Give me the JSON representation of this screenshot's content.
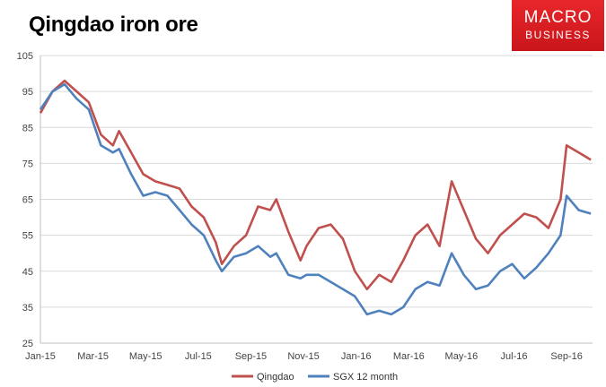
{
  "title": "Qingdao iron ore",
  "logo": {
    "line1": "MACRO",
    "line2": "BUSINESS"
  },
  "colors": {
    "qingdao": "#c0504d",
    "sgx": "#4f81bd",
    "grid": "#d9d9d9"
  },
  "chart_data": {
    "type": "line",
    "title": "Qingdao iron ore",
    "xlabel": "",
    "ylabel": "",
    "ylim": [
      25,
      105
    ],
    "yticks": [
      25,
      35,
      45,
      55,
      65,
      75,
      85,
      95,
      105
    ],
    "xlim": [
      "2015-01-01",
      "2016-10-01"
    ],
    "xtick_labels": [
      "Jan-15",
      "Mar-15",
      "May-15",
      "Jul-15",
      "Sep-15",
      "Nov-15",
      "Jan-16",
      "Mar-16",
      "May-16",
      "Jul-16",
      "Sep-16"
    ],
    "grid": "horizontal",
    "legend": "bottom",
    "series": [
      {
        "name": "Qingdao",
        "points": [
          [
            "2015-01-01",
            89
          ],
          [
            "2015-01-15",
            95
          ],
          [
            "2015-01-29",
            98
          ],
          [
            "2015-02-12",
            95
          ],
          [
            "2015-02-26",
            92
          ],
          [
            "2015-03-12",
            83
          ],
          [
            "2015-03-26",
            80
          ],
          [
            "2015-04-02",
            84
          ],
          [
            "2015-04-16",
            78
          ],
          [
            "2015-04-30",
            72
          ],
          [
            "2015-05-14",
            70
          ],
          [
            "2015-05-28",
            69
          ],
          [
            "2015-06-11",
            68
          ],
          [
            "2015-06-25",
            63
          ],
          [
            "2015-07-09",
            60
          ],
          [
            "2015-07-23",
            53
          ],
          [
            "2015-07-30",
            47
          ],
          [
            "2015-08-13",
            52
          ],
          [
            "2015-08-27",
            55
          ],
          [
            "2015-09-10",
            63
          ],
          [
            "2015-09-24",
            62
          ],
          [
            "2015-10-01",
            65
          ],
          [
            "2015-10-15",
            56
          ],
          [
            "2015-10-29",
            48
          ],
          [
            "2015-11-05",
            52
          ],
          [
            "2015-11-19",
            57
          ],
          [
            "2015-12-03",
            58
          ],
          [
            "2015-12-17",
            54
          ],
          [
            "2015-12-31",
            45
          ],
          [
            "2016-01-14",
            40
          ],
          [
            "2016-01-28",
            44
          ],
          [
            "2016-02-11",
            42
          ],
          [
            "2016-02-25",
            48
          ],
          [
            "2016-03-10",
            55
          ],
          [
            "2016-03-24",
            58
          ],
          [
            "2016-04-07",
            52
          ],
          [
            "2016-04-21",
            70
          ],
          [
            "2016-05-05",
            62
          ],
          [
            "2016-05-19",
            54
          ],
          [
            "2016-06-02",
            50
          ],
          [
            "2016-06-16",
            55
          ],
          [
            "2016-06-30",
            58
          ],
          [
            "2016-07-14",
            61
          ],
          [
            "2016-07-28",
            60
          ],
          [
            "2016-08-11",
            57
          ],
          [
            "2016-08-25",
            65
          ],
          [
            "2016-09-01",
            80
          ],
          [
            "2016-09-15",
            78
          ],
          [
            "2016-09-29",
            76
          ]
        ]
      },
      {
        "name": "SGX 12 month",
        "points": [
          [
            "2015-01-01",
            90
          ],
          [
            "2015-01-15",
            95
          ],
          [
            "2015-01-29",
            97
          ],
          [
            "2015-02-12",
            93
          ],
          [
            "2015-02-26",
            90
          ],
          [
            "2015-03-12",
            80
          ],
          [
            "2015-03-26",
            78
          ],
          [
            "2015-04-02",
            79
          ],
          [
            "2015-04-16",
            72
          ],
          [
            "2015-04-30",
            66
          ],
          [
            "2015-05-14",
            67
          ],
          [
            "2015-05-28",
            66
          ],
          [
            "2015-06-11",
            62
          ],
          [
            "2015-06-25",
            58
          ],
          [
            "2015-07-09",
            55
          ],
          [
            "2015-07-23",
            48
          ],
          [
            "2015-07-30",
            45
          ],
          [
            "2015-08-13",
            49
          ],
          [
            "2015-08-27",
            50
          ],
          [
            "2015-09-10",
            52
          ],
          [
            "2015-09-24",
            49
          ],
          [
            "2015-10-01",
            50
          ],
          [
            "2015-10-15",
            44
          ],
          [
            "2015-10-29",
            43
          ],
          [
            "2015-11-05",
            44
          ],
          [
            "2015-11-19",
            44
          ],
          [
            "2015-12-03",
            42
          ],
          [
            "2015-12-17",
            40
          ],
          [
            "2015-12-31",
            38
          ],
          [
            "2016-01-14",
            33
          ],
          [
            "2016-01-28",
            34
          ],
          [
            "2016-02-11",
            33
          ],
          [
            "2016-02-25",
            35
          ],
          [
            "2016-03-10",
            40
          ],
          [
            "2016-03-24",
            42
          ],
          [
            "2016-04-07",
            41
          ],
          [
            "2016-04-21",
            50
          ],
          [
            "2016-05-05",
            44
          ],
          [
            "2016-05-19",
            40
          ],
          [
            "2016-06-02",
            41
          ],
          [
            "2016-06-16",
            45
          ],
          [
            "2016-06-30",
            47
          ],
          [
            "2016-07-14",
            43
          ],
          [
            "2016-07-28",
            46
          ],
          [
            "2016-08-11",
            50
          ],
          [
            "2016-08-25",
            55
          ],
          [
            "2016-09-01",
            66
          ],
          [
            "2016-09-15",
            62
          ],
          [
            "2016-09-29",
            61
          ]
        ]
      }
    ]
  }
}
